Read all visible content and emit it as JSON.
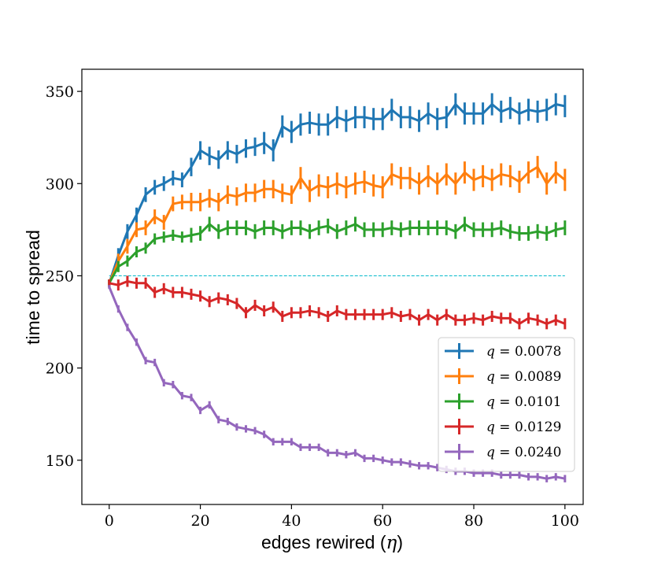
{
  "chart_data": {
    "type": "line",
    "title": "",
    "xlabel": "edges rewired (",
    "xlabel_symbol": "η",
    "xlabel_suffix": ")",
    "ylabel": "time to spread",
    "xlim": [
      -6,
      104
    ],
    "ylim": [
      126,
      362
    ],
    "xticks": [
      "0",
      "20",
      "40",
      "60",
      "80",
      "100"
    ],
    "xtick_values": [
      0,
      20,
      40,
      60,
      80,
      100
    ],
    "yticks": [
      "150",
      "200",
      "250",
      "300",
      "350"
    ],
    "ytick_values": [
      150,
      200,
      250,
      300,
      350
    ],
    "x": [
      0,
      2,
      4,
      6,
      8,
      10,
      12,
      14,
      16,
      18,
      20,
      22,
      24,
      26,
      28,
      30,
      32,
      34,
      36,
      38,
      40,
      42,
      44,
      46,
      48,
      50,
      52,
      54,
      56,
      58,
      60,
      62,
      64,
      66,
      68,
      70,
      72,
      74,
      76,
      78,
      80,
      82,
      84,
      86,
      88,
      90,
      92,
      94,
      96,
      98,
      100
    ],
    "reference_line": {
      "y": 250,
      "x_range": [
        0,
        100
      ],
      "color": "#17becf",
      "style": "dashed"
    },
    "legend_position": "lower-right",
    "series": [
      {
        "name": "q = 0.0078",
        "legend_var": "q",
        "legend_value": "= 0.0078",
        "color": "#1f77b4",
        "values": [
          246,
          261,
          274,
          283,
          294,
          298,
          300,
          303,
          302,
          309,
          318,
          315,
          313,
          318,
          316,
          319,
          320,
          322,
          318,
          331,
          328,
          332,
          333,
          332,
          332,
          336,
          334,
          336,
          336,
          335,
          335,
          340,
          336,
          336,
          334,
          338,
          335,
          336,
          343,
          338,
          338,
          338,
          343,
          339,
          341,
          338,
          340,
          339,
          340,
          343,
          342
        ],
        "errors": [
          2,
          4,
          4,
          4,
          4,
          4,
          4,
          4,
          4,
          5,
          5,
          5,
          5,
          5,
          5,
          5,
          5,
          6,
          6,
          6,
          6,
          6,
          6,
          6,
          6,
          6,
          6,
          6,
          6,
          6,
          6,
          6,
          6,
          6,
          6,
          6,
          6,
          6,
          6,
          6,
          6,
          6,
          6,
          6,
          6,
          6,
          6,
          6,
          6,
          6,
          6
        ]
      },
      {
        "name": "q = 0.0089",
        "legend_var": "q",
        "legend_value": "= 0.0089",
        "color": "#ff7f0e",
        "values": [
          246,
          258,
          266,
          275,
          276,
          282,
          279,
          289,
          290,
          290,
          290,
          292,
          290,
          294,
          293,
          295,
          295,
          297,
          297,
          295,
          294,
          303,
          296,
          299,
          298,
          300,
          298,
          300,
          301,
          299,
          298,
          305,
          303,
          303,
          300,
          304,
          300,
          305,
          300,
          306,
          302,
          304,
          302,
          305,
          304,
          301,
          306,
          309,
          300,
          306,
          302
        ],
        "errors": [
          2,
          4,
          4,
          4,
          4,
          4,
          4,
          4,
          4,
          5,
          5,
          5,
          5,
          5,
          5,
          5,
          5,
          5,
          5,
          5,
          5,
          6,
          6,
          6,
          6,
          6,
          6,
          6,
          6,
          6,
          6,
          6,
          6,
          6,
          6,
          6,
          6,
          6,
          6,
          6,
          6,
          6,
          6,
          6,
          6,
          6,
          6,
          6,
          6,
          6,
          6
        ]
      },
      {
        "name": "q = 0.0101",
        "legend_var": "q",
        "legend_value": "= 0.0101",
        "color": "#2ca02c",
        "values": [
          246,
          255,
          258,
          263,
          265,
          270,
          271,
          272,
          271,
          272,
          273,
          278,
          274,
          276,
          276,
          276,
          274,
          276,
          276,
          274,
          276,
          276,
          274,
          276,
          277,
          274,
          276,
          278,
          275,
          275,
          275,
          276,
          275,
          276,
          276,
          276,
          276,
          276,
          274,
          278,
          275,
          275,
          275,
          276,
          274,
          273,
          273,
          274,
          273,
          275,
          276
        ],
        "errors": [
          2,
          3,
          3,
          3,
          3,
          3,
          3,
          3,
          3,
          4,
          4,
          4,
          4,
          4,
          4,
          4,
          4,
          4,
          4,
          4,
          4,
          4,
          4,
          4,
          4,
          4,
          4,
          4,
          4,
          4,
          4,
          4,
          4,
          4,
          4,
          4,
          4,
          4,
          4,
          4,
          4,
          4,
          4,
          4,
          4,
          4,
          4,
          4,
          4,
          4,
          4
        ]
      },
      {
        "name": "q = 0.0129",
        "legend_var": "q",
        "legend_value": "= 0.0129",
        "color": "#d62728",
        "values": [
          246,
          245,
          247,
          246,
          246,
          241,
          243,
          241,
          241,
          240,
          239,
          236,
          238,
          237,
          235,
          230,
          234,
          231,
          233,
          228,
          230,
          230,
          231,
          230,
          228,
          231,
          229,
          229,
          229,
          229,
          229,
          230,
          228,
          229,
          226,
          229,
          226,
          229,
          226,
          226,
          227,
          226,
          228,
          227,
          227,
          224,
          227,
          226,
          224,
          226,
          224
        ],
        "errors": [
          2,
          3,
          3,
          3,
          3,
          3,
          3,
          3,
          3,
          3,
          3,
          3,
          3,
          3,
          3,
          3,
          3,
          3,
          3,
          3,
          3,
          3,
          3,
          3,
          3,
          3,
          3,
          3,
          3,
          3,
          3,
          3,
          3,
          3,
          3,
          3,
          3,
          3,
          3,
          3,
          3,
          3,
          3,
          3,
          3,
          3,
          3,
          3,
          3,
          3,
          3
        ]
      },
      {
        "name": "q = 0.0240",
        "legend_var": "q",
        "legend_value": "= 0.0240",
        "color": "#9467bd",
        "values": [
          244,
          232,
          222,
          214,
          204,
          203,
          192,
          191,
          185,
          184,
          177,
          180,
          172,
          171,
          168,
          167,
          166,
          164,
          160,
          160,
          160,
          157,
          157,
          157,
          154,
          154,
          153,
          154,
          151,
          151,
          150,
          149,
          149,
          148,
          147,
          147,
          146,
          145,
          144,
          144,
          143,
          143,
          143,
          142,
          142,
          142,
          141,
          141,
          140,
          141,
          140
        ],
        "errors": [
          1,
          2,
          2,
          2,
          2,
          2,
          2,
          2,
          2,
          2,
          2,
          2,
          2,
          2,
          2,
          2,
          2,
          2,
          2,
          2,
          2,
          2,
          2,
          2,
          2,
          2,
          2,
          2,
          2,
          2,
          2,
          2,
          2,
          2,
          2,
          2,
          2,
          2,
          2,
          2,
          2,
          2,
          2,
          2,
          2,
          2,
          2,
          2,
          2,
          2,
          2
        ]
      }
    ]
  }
}
